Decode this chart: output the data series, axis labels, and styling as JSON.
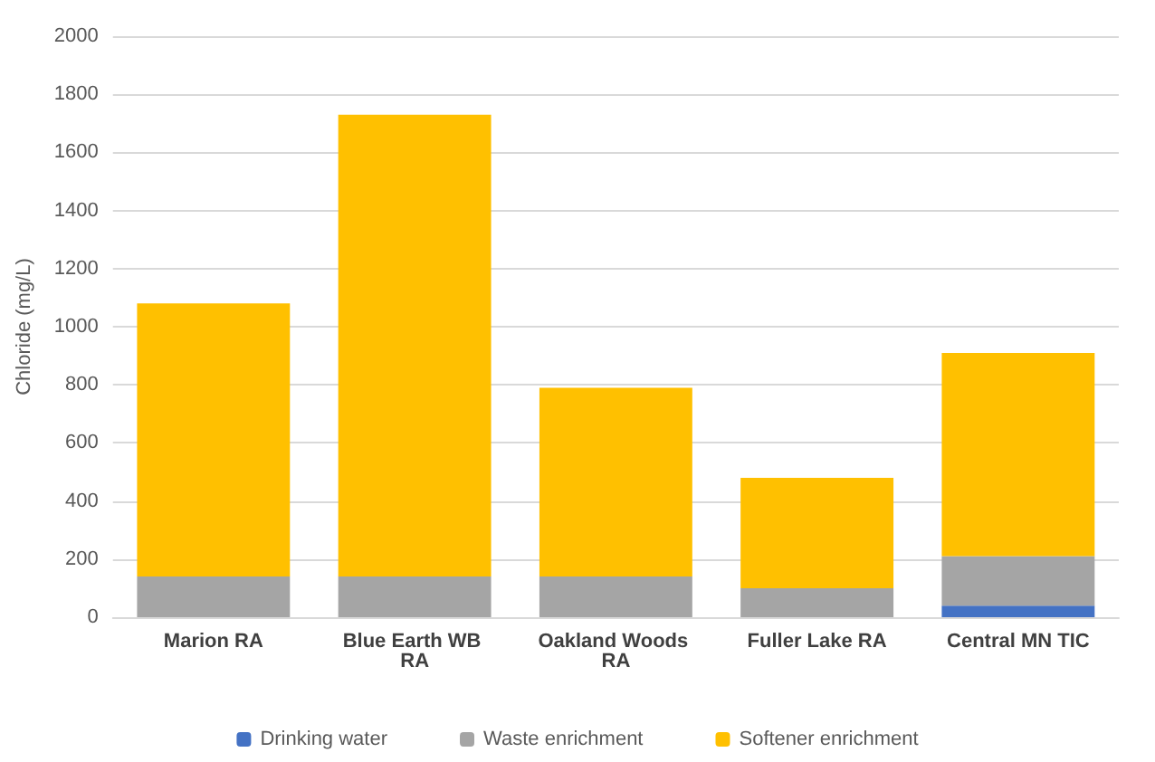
{
  "chart_data": {
    "type": "bar",
    "stacked": true,
    "ylabel": "Chloride (mg/L)",
    "categories": [
      "Marion RA",
      "Blue Earth WB RA",
      "Oakland Woods RA",
      "Fuller Lake RA",
      "Central MN TIC"
    ],
    "series": [
      {
        "name": "Drinking water",
        "color": "#4472c4",
        "values": [
          0,
          0,
          0,
          0,
          40
        ]
      },
      {
        "name": "Waste enrichment",
        "color": "#a5a5a5",
        "values": [
          140,
          140,
          140,
          100,
          170
        ]
      },
      {
        "name": "Softener enrichment",
        "color": "#ffc000",
        "values": [
          940,
          1590,
          650,
          380,
          700
        ]
      }
    ],
    "ylim": [
      0,
      2000
    ],
    "yticks": [
      0,
      200,
      400,
      600,
      800,
      1000,
      1200,
      1400,
      1600,
      1800,
      2000
    ],
    "grid": "y",
    "legend": "bottom"
  }
}
